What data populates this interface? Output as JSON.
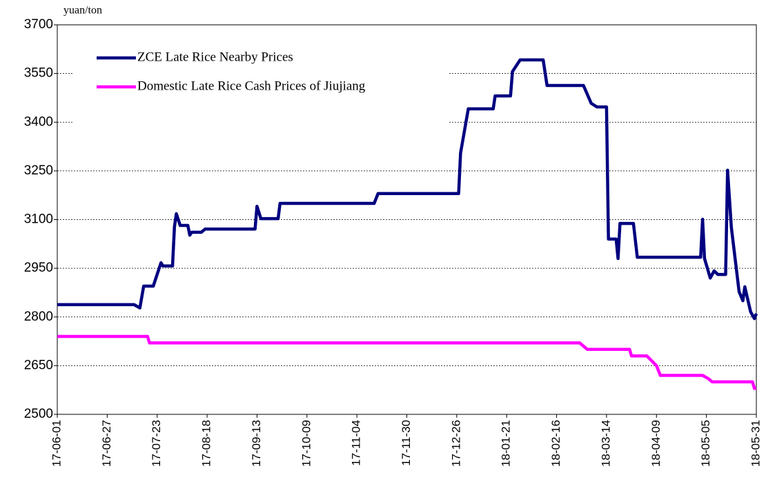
{
  "chart_data": {
    "type": "line",
    "y_label": "yuan/ton",
    "ylim": [
      2500,
      3700
    ],
    "yticks": [
      2500,
      2650,
      2800,
      2950,
      3100,
      3250,
      3400,
      3550,
      3700
    ],
    "xlim": [
      "17-06-01",
      "18-05-31"
    ],
    "xticks": [
      "17-06-01",
      "17-06-27",
      "17-07-23",
      "17-08-18",
      "17-09-13",
      "17-10-09",
      "17-11-04",
      "17-11-30",
      "17-12-26",
      "18-01-21",
      "18-02-16",
      "18-03-14",
      "18-04-09",
      "18-05-05",
      "18-05-31"
    ],
    "grid": true,
    "legend": "upper left",
    "series": [
      {
        "name": "ZCE Late Rice Nearby Prices",
        "color": "#000080",
        "x": [
          "17-06-01",
          "17-07-11",
          "17-07-14",
          "17-07-16",
          "17-07-21",
          "17-07-25",
          "17-07-26",
          "17-07-31",
          "17-08-01",
          "17-08-02",
          "17-08-04",
          "17-08-08",
          "17-08-09",
          "17-08-10",
          "17-08-15",
          "17-08-17",
          "17-09-12",
          "17-09-13",
          "17-09-15",
          "17-09-24",
          "17-09-25",
          "17-11-13",
          "17-11-15",
          "17-12-27",
          "17-12-28",
          "18-01-01",
          "18-01-14",
          "18-01-15",
          "18-01-23",
          "18-01-24",
          "18-01-28",
          "18-02-09",
          "18-02-11",
          "18-03-02",
          "18-03-06",
          "18-03-09",
          "18-03-14",
          "18-03-15",
          "18-03-19",
          "18-03-20",
          "18-03-21",
          "18-03-28",
          "18-03-30",
          "18-05-02",
          "18-05-03",
          "18-05-04",
          "18-05-07",
          "18-05-09",
          "18-05-11",
          "18-05-15",
          "18-05-16",
          "18-05-18",
          "18-05-22",
          "18-05-24",
          "18-05-25",
          "18-05-28",
          "18-05-30",
          "18-05-31"
        ],
        "values": [
          2838,
          2838,
          2828,
          2895,
          2895,
          2967,
          2957,
          2957,
          3078,
          3118,
          3082,
          3082,
          3052,
          3061,
          3061,
          3071,
          3071,
          3141,
          3103,
          3103,
          3150,
          3150,
          3180,
          3180,
          3305,
          3441,
          3441,
          3481,
          3481,
          3556,
          3592,
          3592,
          3513,
          3513,
          3458,
          3447,
          3447,
          3040,
          3040,
          2980,
          3088,
          3088,
          2984,
          2984,
          3101,
          2980,
          2920,
          2942,
          2931,
          2931,
          3252,
          3076,
          2878,
          2850,
          2893,
          2816,
          2795,
          2810
        ]
      },
      {
        "name": "Domestic Late Rice Cash Prices of Jiujiang",
        "color": "#ff00ff",
        "x": [
          "17-06-01",
          "17-07-18",
          "17-07-19",
          "18-02-28",
          "18-03-04",
          "18-03-26",
          "18-03-27",
          "18-04-04",
          "18-04-09",
          "18-04-11",
          "18-05-03",
          "18-05-06",
          "18-05-08",
          "18-05-29",
          "18-05-30",
          "18-05-31"
        ],
        "values": [
          2740,
          2740,
          2720,
          2720,
          2700,
          2700,
          2680,
          2680,
          2650,
          2620,
          2620,
          2610,
          2600,
          2600,
          2580,
          2580
        ]
      }
    ]
  }
}
